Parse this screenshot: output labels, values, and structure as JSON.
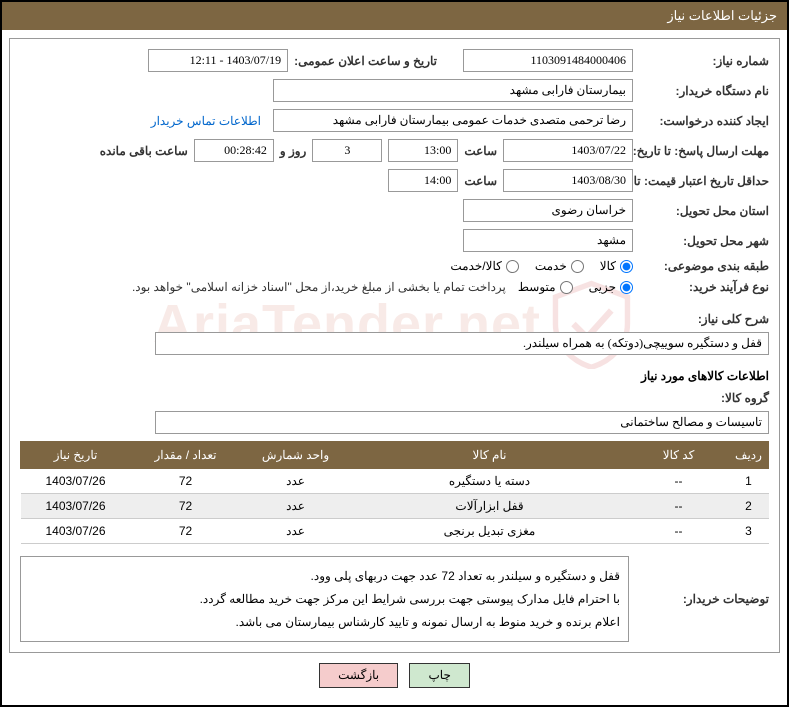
{
  "titlebar": "جزئیات اطلاعات نیاز",
  "labels": {
    "reqNo": "شماره نیاز:",
    "pubDate": "تاریخ و ساعت اعلان عمومی:",
    "buyer": "نام دستگاه خریدار:",
    "requester": "ایجاد کننده درخواست:",
    "contactLink": "اطلاعات تماس خریدار",
    "deadline": "مهلت ارسال پاسخ:",
    "until": "تا تاریخ:",
    "hour": "ساعت",
    "dayAnd": "روز و",
    "remain": "ساعت باقی مانده",
    "pricevalid": "حداقل تاریخ اعتبار قیمت:",
    "province": "استان محل تحویل:",
    "city": "شهر محل تحویل:",
    "category": "طبقه بندی موضوعی:",
    "purchType": "نوع فرآیند خرید:",
    "generalDesc": "شرح کلی نیاز:",
    "itemsHeader": "اطلاعات کالاهای مورد نیاز",
    "group": "گروه کالا:",
    "buyerNotes": "توضیحات خریدار:"
  },
  "values": {
    "reqNo": "1103091484000406",
    "pubDate": "1403/07/19 - 12:11",
    "buyer": "بیمارستان فارابی مشهد",
    "requester": "رضا ترحمی متصدی خدمات عمومی بیمارستان فارابی مشهد",
    "deadlineDate": "1403/07/22",
    "deadlineHour": "13:00",
    "days": "3",
    "countdown": "00:28:42",
    "priceValidDate": "1403/08/30",
    "priceValidHour": "14:00",
    "province": "خراسان رضوی",
    "city": "مشهد",
    "generalDesc": "قفل و دستگیره سوییچی(دوتکه) به همراه سیلندر.",
    "group": "تاسیسات و مصالح ساختمانی",
    "note": "پرداخت تمام یا بخشی از مبلغ خرید،از محل \"اسناد خزانه اسلامی\" خواهد بود."
  },
  "radios": {
    "category": [
      "کالا",
      "خدمت",
      "کالا/خدمت"
    ],
    "purchType": [
      "جزیی",
      "متوسط"
    ]
  },
  "table": {
    "headers": [
      "ردیف",
      "کد کالا",
      "نام کالا",
      "واحد شمارش",
      "تعداد / مقدار",
      "تاریخ نیاز"
    ],
    "rows": [
      [
        "1",
        "--",
        "دسته یا دستگیره",
        "عدد",
        "72",
        "1403/07/26"
      ],
      [
        "2",
        "--",
        "قفل ابزارآلات",
        "عدد",
        "72",
        "1403/07/26"
      ],
      [
        "3",
        "--",
        "مغزی تبدیل برنجی",
        "عدد",
        "72",
        "1403/07/26"
      ]
    ]
  },
  "notesLines": [
    "قفل و دستگیره و سیلندر به تعداد 72 عدد جهت دربهای پلی وود.",
    "با احترام فایل مدارک پیوستی جهت بررسی شرایط این مرکز جهت خرید مطالعه گردد.",
    "اعلام برنده و خرید منوط به ارسال نمونه و تایید کارشناس بیمارستان می باشد."
  ],
  "buttons": {
    "print": "چاپ",
    "back": "بازگشت"
  },
  "colors": {
    "header": "#7d6642",
    "btnPrint": "#cfe8cf",
    "btnBack": "#f5cccc"
  },
  "watermark": "AriaTender.net"
}
